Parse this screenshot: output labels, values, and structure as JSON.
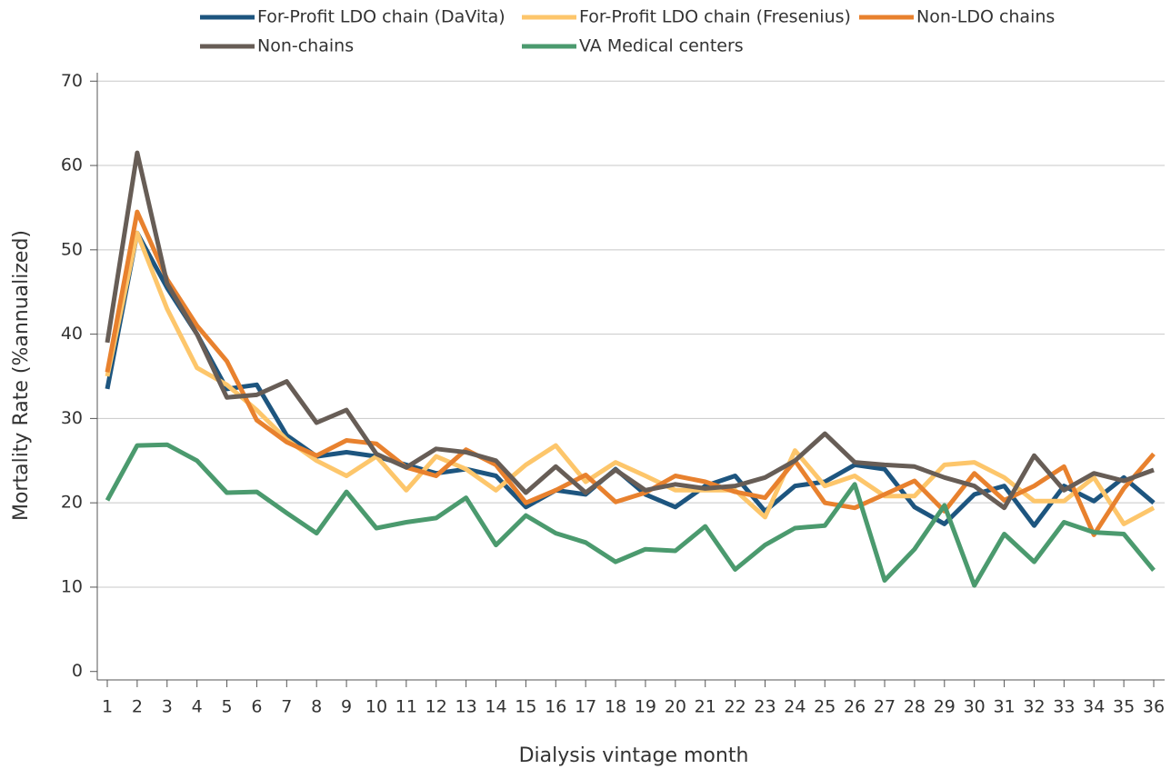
{
  "chart_data": {
    "type": "line",
    "x_label": "Dialysis vintage month",
    "y_label": "Mortality Rate (%annualized)",
    "categories": [
      "1",
      "2",
      "3",
      "4",
      "5",
      "6",
      "7",
      "8",
      "9",
      "10",
      "11",
      "12",
      "13",
      "14",
      "15",
      "16",
      "17",
      "18",
      "19",
      "20",
      "21",
      "22",
      "23",
      "24",
      "25",
      "26",
      "27",
      "28",
      "29",
      "30",
      "31",
      "32",
      "33",
      "34",
      "35",
      "36"
    ],
    "ylim": [
      -1,
      71
    ],
    "yticks": [
      0,
      10,
      20,
      30,
      40,
      50,
      60,
      70
    ],
    "grid": true,
    "series": [
      {
        "name": "For-Profit LDO chain (DaVita)",
        "color": "#1d557f",
        "values": [
          33.5,
          52,
          45.5,
          40,
          33.5,
          34,
          28,
          25.5,
          26,
          25.5,
          24.5,
          23.5,
          24,
          23.2,
          19.5,
          21.5,
          21,
          24,
          21,
          19.5,
          22,
          23.2,
          19,
          22,
          22.5,
          24.5,
          24,
          19.5,
          17.5,
          21,
          22,
          17.3,
          22,
          20.2,
          23,
          20
        ]
      },
      {
        "name": "For-Profit LDO chain (Fresenius)",
        "color": "#fdc66b",
        "values": [
          35,
          52,
          43,
          36,
          34,
          31,
          27.5,
          25,
          23.2,
          25.5,
          21.5,
          25.5,
          24,
          21.5,
          24.5,
          26.8,
          22.5,
          24.8,
          23.2,
          21.5,
          21.5,
          21.5,
          18.3,
          26.2,
          22,
          23.2,
          20.8,
          20.8,
          24.5,
          24.8,
          23,
          20.2,
          20.2,
          23,
          17.5,
          19.4
        ]
      },
      {
        "name": "Non-LDO chains",
        "color": "#e8812e",
        "values": [
          35.5,
          54.5,
          46.5,
          41,
          36.8,
          29.8,
          27.2,
          25.6,
          27.4,
          27,
          24.2,
          23.2,
          26.3,
          24.5,
          20,
          21.5,
          23.3,
          20.1,
          21.2,
          23.2,
          22.5,
          21.3,
          20.6,
          25,
          20,
          19.4,
          21,
          22.6,
          19,
          23.5,
          20.3,
          22,
          24.3,
          16.2,
          21.7,
          25.8
        ]
      },
      {
        "name": "Non-chains",
        "color": "#675d56",
        "values": [
          39,
          61.5,
          46,
          40,
          32.5,
          32.8,
          34.4,
          29.5,
          31,
          25.8,
          24.2,
          26.4,
          26,
          25,
          21.2,
          24.3,
          21.2,
          23.9,
          21.5,
          22.2,
          21.7,
          22,
          23,
          25,
          28.2,
          24.8,
          24.5,
          24.3,
          23,
          22,
          19.4,
          25.6,
          21.5,
          23.5,
          22.6,
          23.9
        ]
      },
      {
        "name": "VA Medical centers",
        "color": "#4b9a6e",
        "values": [
          20.3,
          26.8,
          26.9,
          25,
          21.2,
          21.3,
          18.8,
          16.4,
          21.3,
          17,
          17.7,
          18.2,
          20.6,
          15,
          18.5,
          16.4,
          15.3,
          13,
          14.5,
          14.3,
          17.2,
          12.1,
          15,
          17,
          17.3,
          22.2,
          10.8,
          14.5,
          19.7,
          10.2,
          16.3,
          13,
          17.7,
          16.5,
          16.3,
          12
        ]
      }
    ]
  }
}
